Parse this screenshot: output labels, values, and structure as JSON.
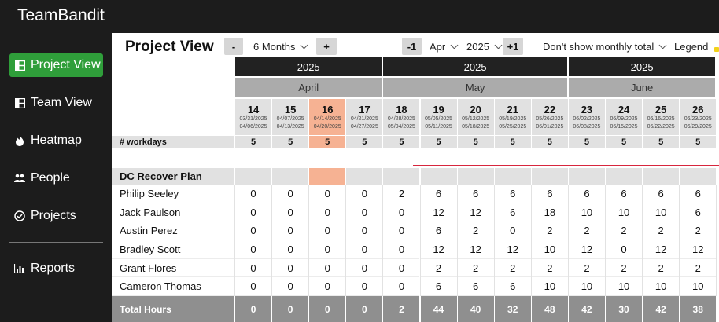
{
  "app": {
    "title": "TeamBandit"
  },
  "sidebar": {
    "items": [
      {
        "label": "Project View",
        "icon": "project-view-icon",
        "active": true
      },
      {
        "label": "Team View",
        "icon": "team-view-icon",
        "active": false
      },
      {
        "label": "Heatmap",
        "icon": "flame-icon",
        "active": false
      },
      {
        "label": "People",
        "icon": "people-icon",
        "active": false
      },
      {
        "label": "Projects",
        "icon": "check-circle-icon",
        "active": false
      },
      {
        "label": "Reports",
        "icon": "bar-chart-icon",
        "active": false
      }
    ]
  },
  "toolbar": {
    "title": "Project View",
    "minus_label": "-",
    "range_value": "6 Months",
    "plus_label": "+",
    "prev_label": "-1",
    "month_value": "Apr",
    "year_value": "2025",
    "next_label": "+1",
    "total_option": "Don't show monthly total",
    "legend_label": "Legend"
  },
  "grid": {
    "years": [
      "2025",
      "2025",
      "2025"
    ],
    "months": [
      "April",
      "May",
      "June"
    ],
    "weeks": [
      {
        "day": "14",
        "start": "03/31/2025",
        "end": "04/06/2025"
      },
      {
        "day": "15",
        "start": "04/07/2025",
        "end": "04/13/2025"
      },
      {
        "day": "16",
        "start": "04/14/2025",
        "end": "04/20/2025",
        "current": true
      },
      {
        "day": "17",
        "start": "04/21/2025",
        "end": "04/27/2025"
      },
      {
        "day": "18",
        "start": "04/28/2025",
        "end": "05/04/2025"
      },
      {
        "day": "19",
        "start": "05/05/2025",
        "end": "05/11/2025"
      },
      {
        "day": "20",
        "start": "05/12/2025",
        "end": "05/18/2025"
      },
      {
        "day": "21",
        "start": "05/19/2025",
        "end": "05/25/2025"
      },
      {
        "day": "22",
        "start": "05/26/2025",
        "end": "06/01/2025"
      },
      {
        "day": "23",
        "start": "06/02/2025",
        "end": "06/08/2025"
      },
      {
        "day": "24",
        "start": "06/09/2025",
        "end": "06/15/2025"
      },
      {
        "day": "25",
        "start": "06/16/2025",
        "end": "06/22/2025"
      },
      {
        "day": "26",
        "start": "06/23/2025",
        "end": "06/29/2025"
      }
    ],
    "workdays_label": "# workdays",
    "workdays": [
      "5",
      "5",
      "5",
      "5",
      "5",
      "5",
      "5",
      "5",
      "5",
      "5",
      "5",
      "5",
      "5"
    ],
    "project_name": "DC Recover Plan",
    "people": [
      {
        "name": "Philip Seeley",
        "hours": [
          "0",
          "0",
          "0",
          "0",
          "2",
          "6",
          "6",
          "6",
          "6",
          "6",
          "6",
          "6",
          "6"
        ]
      },
      {
        "name": "Jack Paulson",
        "hours": [
          "0",
          "0",
          "0",
          "0",
          "0",
          "12",
          "12",
          "6",
          "18",
          "10",
          "10",
          "10",
          "6"
        ]
      },
      {
        "name": "Austin Perez",
        "hours": [
          "0",
          "0",
          "0",
          "0",
          "0",
          "6",
          "2",
          "0",
          "2",
          "2",
          "2",
          "2",
          "2"
        ]
      },
      {
        "name": "Bradley Scott",
        "hours": [
          "0",
          "0",
          "0",
          "0",
          "0",
          "12",
          "12",
          "12",
          "10",
          "12",
          "0",
          "12",
          "12"
        ]
      },
      {
        "name": "Grant Flores",
        "hours": [
          "0",
          "0",
          "0",
          "0",
          "0",
          "2",
          "2",
          "2",
          "2",
          "2",
          "2",
          "2",
          "2"
        ]
      },
      {
        "name": "Cameron Thomas",
        "hours": [
          "0",
          "0",
          "0",
          "0",
          "0",
          "6",
          "6",
          "6",
          "10",
          "10",
          "10",
          "10",
          "10"
        ]
      }
    ],
    "total_label": "Total Hours",
    "totals": [
      "0",
      "0",
      "0",
      "0",
      "2",
      "44",
      "40",
      "32",
      "48",
      "42",
      "30",
      "42",
      "38"
    ]
  },
  "colors": {
    "accent_green": "#2f9e3a",
    "current_week": "#f6b293",
    "over_allocation_line": "#d7263d"
  }
}
